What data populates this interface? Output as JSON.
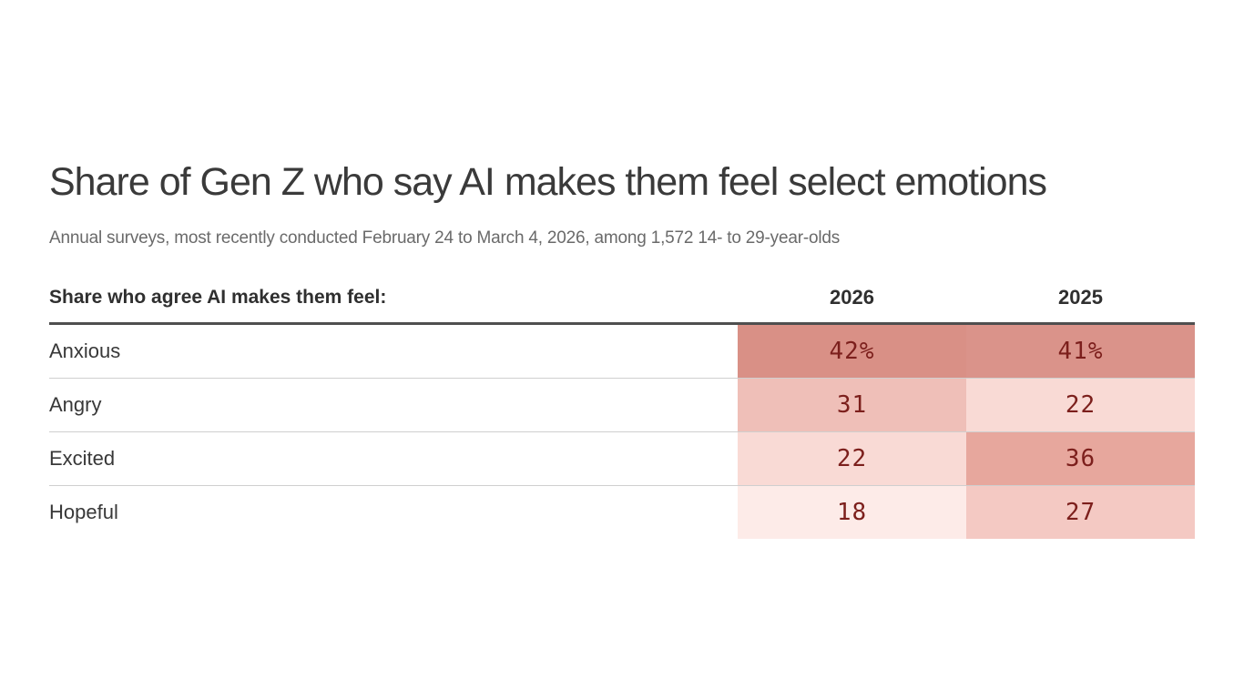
{
  "page": {
    "title": "Share of Gen Z who say AI makes them feel select emotions",
    "subtitle": "Annual surveys, most recently conducted February 24 to March 4, 2026, among 1,572 14- to 29-year-olds"
  },
  "chart_data": {
    "type": "table",
    "title": "Share of Gen Z who say AI makes them feel select emotions",
    "subtitle": "Annual surveys, most recently conducted February 24 to March 4, 2026, among 1,572 14- to 29-year-olds",
    "row_header_label": "Share who agree AI makes them feel:",
    "columns": [
      "2026",
      "2025"
    ],
    "rows": [
      {
        "label": "Anxious",
        "values": [
          42,
          41
        ],
        "display": [
          "42%",
          "41%"
        ],
        "cell_colors": [
          "#d99086",
          "#da938a"
        ]
      },
      {
        "label": "Angry",
        "values": [
          31,
          22
        ],
        "display": [
          "31",
          "22"
        ],
        "cell_colors": [
          "#efbfb8",
          "#f9dad5"
        ]
      },
      {
        "label": "Excited",
        "values": [
          22,
          36
        ],
        "display": [
          "22",
          "36"
        ],
        "cell_colors": [
          "#f9dad5",
          "#e7a79d"
        ]
      },
      {
        "label": "Hopeful",
        "values": [
          18,
          27
        ],
        "display": [
          "18",
          "27"
        ],
        "cell_colors": [
          "#fdebe8",
          "#f4c9c3"
        ]
      }
    ],
    "layout": {
      "heatmap": true,
      "value_text_color": "#7c1f1c",
      "header_rule_color": "#4f4f4f",
      "divider_color": "#cfcfcf"
    }
  }
}
